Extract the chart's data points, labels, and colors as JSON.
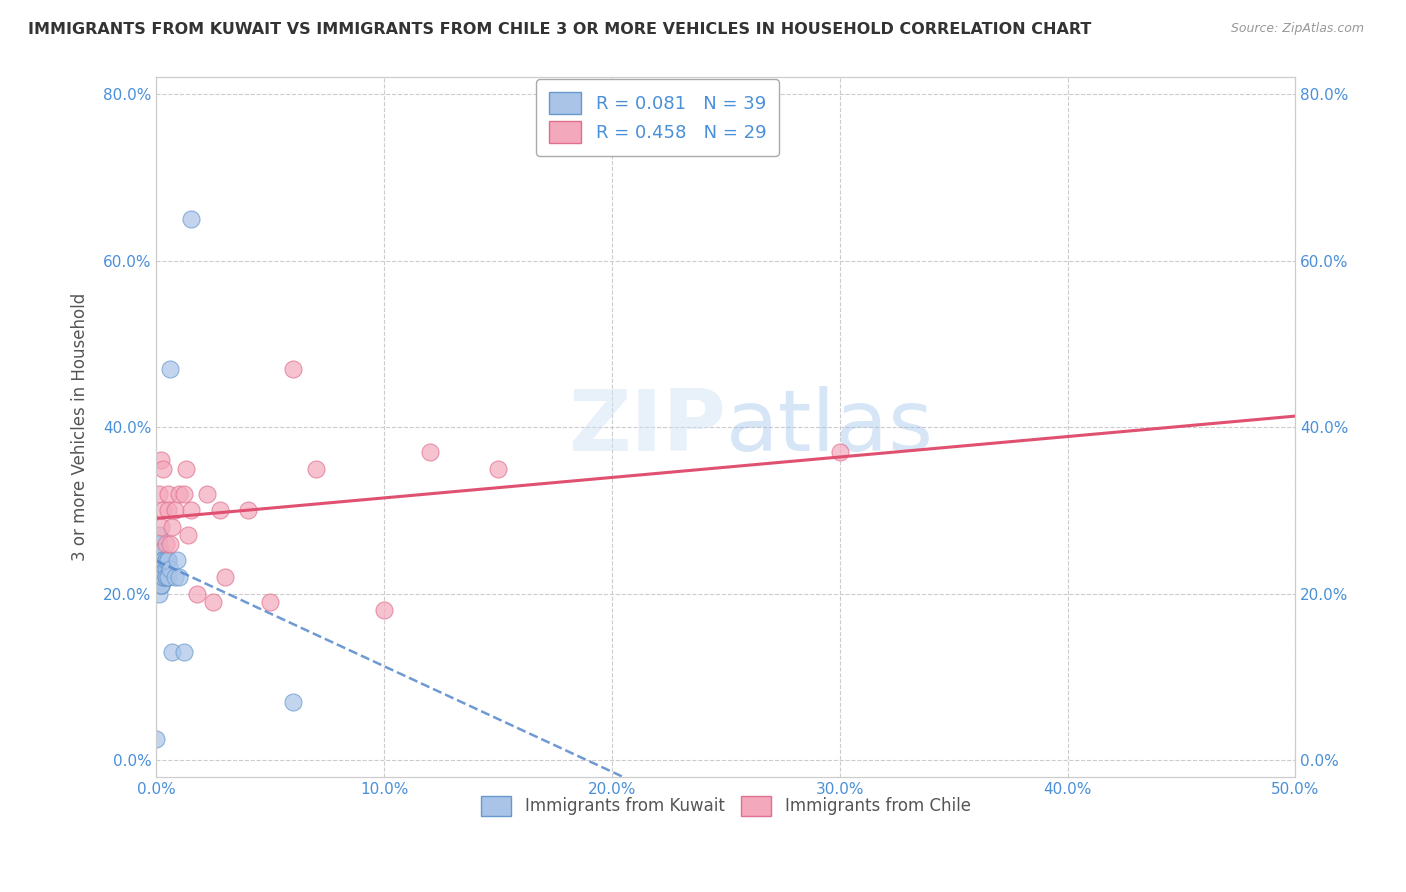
{
  "title": "IMMIGRANTS FROM KUWAIT VS IMMIGRANTS FROM CHILE 3 OR MORE VEHICLES IN HOUSEHOLD CORRELATION CHART",
  "source": "Source: ZipAtlas.com",
  "ylabel": "3 or more Vehicles in Household",
  "xlim": [
    0.0,
    0.5
  ],
  "ylim": [
    -0.02,
    0.82
  ],
  "xticks": [
    0.0,
    0.1,
    0.2,
    0.3,
    0.4,
    0.5
  ],
  "yticks": [
    0.0,
    0.2,
    0.4,
    0.6,
    0.8
  ],
  "xticklabels": [
    "0.0%",
    "10.0%",
    "20.0%",
    "30.0%",
    "40.0%",
    "50.0%"
  ],
  "yticklabels": [
    "0.0%",
    "20.0%",
    "40.0%",
    "60.0%",
    "80.0%"
  ],
  "kuwait_color": "#aac4e8",
  "chile_color": "#f4a8bb",
  "kuwait_edge": "#6699cc",
  "chile_edge": "#e07090",
  "trendline_kuwait_color": "#5588cc",
  "trendline_chile_color": "#e05070",
  "R_kuwait": 0.081,
  "N_kuwait": 39,
  "R_chile": 0.458,
  "N_chile": 29,
  "legend_labels": [
    "Immigrants from Kuwait",
    "Immigrants from Chile"
  ],
  "kuwait_x": [
    0.0,
    0.0,
    0.001,
    0.001,
    0.001,
    0.001,
    0.001,
    0.001,
    0.001,
    0.002,
    0.002,
    0.002,
    0.002,
    0.002,
    0.002,
    0.002,
    0.003,
    0.003,
    0.003,
    0.003,
    0.003,
    0.004,
    0.004,
    0.004,
    0.004,
    0.004,
    0.005,
    0.005,
    0.005,
    0.005,
    0.006,
    0.006,
    0.007,
    0.008,
    0.009,
    0.01,
    0.012,
    0.015,
    0.06
  ],
  "kuwait_y": [
    0.025,
    0.22,
    0.24,
    0.22,
    0.26,
    0.2,
    0.23,
    0.25,
    0.27,
    0.21,
    0.23,
    0.21,
    0.23,
    0.25,
    0.23,
    0.21,
    0.24,
    0.22,
    0.24,
    0.22,
    0.24,
    0.23,
    0.22,
    0.24,
    0.22,
    0.24,
    0.22,
    0.24,
    0.22,
    0.24,
    0.47,
    0.23,
    0.13,
    0.22,
    0.24,
    0.22,
    0.13,
    0.65,
    0.07
  ],
  "chile_x": [
    0.001,
    0.002,
    0.002,
    0.003,
    0.003,
    0.004,
    0.005,
    0.005,
    0.006,
    0.007,
    0.008,
    0.01,
    0.012,
    0.013,
    0.014,
    0.015,
    0.018,
    0.022,
    0.025,
    0.028,
    0.03,
    0.04,
    0.05,
    0.06,
    0.07,
    0.1,
    0.12,
    0.15,
    0.3
  ],
  "chile_y": [
    0.32,
    0.28,
    0.36,
    0.3,
    0.35,
    0.26,
    0.32,
    0.3,
    0.26,
    0.28,
    0.3,
    0.32,
    0.32,
    0.35,
    0.27,
    0.3,
    0.2,
    0.32,
    0.19,
    0.3,
    0.22,
    0.3,
    0.19,
    0.47,
    0.35,
    0.18,
    0.37,
    0.35,
    0.37
  ],
  "background_color": "#ffffff",
  "grid_color": "#cccccc",
  "title_color": "#333333",
  "tick_color": "#4a90d9"
}
